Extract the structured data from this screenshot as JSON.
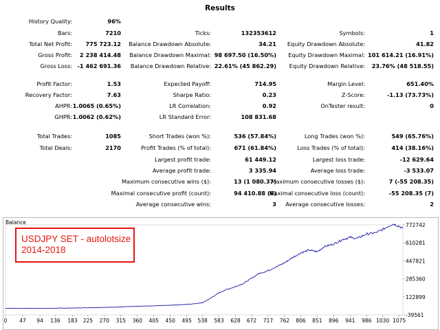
{
  "report": {
    "title": "Results",
    "rows": [
      {
        "id": "r1",
        "cells": [
          {
            "label": "History Quality:",
            "value": "96%"
          },
          null,
          {
            "label": "Ticks:",
            "value": "132353612"
          },
          {
            "label": "Symbols:",
            "value": "1"
          }
        ]
      },
      {
        "id": "r2",
        "cells": [
          {
            "label": "Bars:",
            "value": "7210"
          },
          {
            "label": "Balance Drawdown Absolute:",
            "value": "34.21"
          },
          {
            "label": "Equity Drawdown Absolute:",
            "value": "41.82"
          }
        ]
      },
      {
        "id": "r3",
        "cells": [
          {
            "label": "Total Net Profit:",
            "value": "775 723.12"
          },
          {
            "label": "Balance Drawdown Absolute:",
            "value": "34.21"
          },
          {
            "label": "Equity Drawdown Absolute:",
            "value": "41.82"
          }
        ]
      }
    ],
    "sections": [
      [
        {
          "label": "History Quality:",
          "value": "96%",
          "col": 0
        },
        {
          "label": "Bars:",
          "value": "7210",
          "col": 0
        },
        {
          "label": "Ticks:",
          "value": "132353612",
          "col": 1
        },
        {
          "label": "Symbols:",
          "value": "1",
          "col": 2
        }
      ]
    ],
    "grid": [
      [
        {
          "label": "History Quality:",
          "value": "96%"
        },
        null,
        null
      ],
      [
        {
          "label": "Bars:",
          "value": "7210"
        },
        {
          "label": "Ticks:",
          "value": "132353612"
        },
        {
          "label": "Symbols:",
          "value": "1"
        }
      ],
      [
        {
          "label": "Total Net Profit:",
          "value": "775 723.12"
        },
        {
          "label": "Balance Drawdown Absolute:",
          "value": "34.21"
        },
        {
          "label": "Equity Drawdown Absolute:",
          "value": "41.82"
        }
      ],
      [
        {
          "label": "Gross Profit:",
          "value": "2 238 414.48"
        },
        {
          "label": "Balance Drawdown Maximal:",
          "value": "98 697.50 (16.50%)"
        },
        {
          "label": "Equity Drawdown Maximal:",
          "value": "101 614.21 (16.91%)"
        }
      ],
      [
        {
          "label": "Gross Loss:",
          "value": "-1 462 691.36"
        },
        {
          "label": "Balance Drawdown Relative:",
          "value": "22.61% (45 862.29)"
        },
        {
          "label": "Equity Drawdown Relative:",
          "value": "23.76% (48 518.55)"
        }
      ],
      null,
      [
        {
          "label": "Profit Factor:",
          "value": "1.53"
        },
        {
          "label": "Expected Payoff:",
          "value": "714.95"
        },
        {
          "label": "Margin Level:",
          "value": "651.40%"
        }
      ],
      [
        {
          "label": "Recovery Factor:",
          "value": "7.63"
        },
        {
          "label": "Sharpe Ratio:",
          "value": "0.23"
        },
        {
          "label": "Z-Score:",
          "value": "-1.13 (73.73%)"
        }
      ],
      [
        {
          "label": "AHPR:",
          "value": "1.0065 (0.65%)"
        },
        {
          "label": "LR Correlation:",
          "value": "0.92"
        },
        {
          "label": "OnTester result:",
          "value": "0"
        }
      ],
      [
        {
          "label": "GHPR:",
          "value": "1.0062 (0.62%)"
        },
        {
          "label": "LR Standard Error:",
          "value": "108 831.68"
        },
        null
      ],
      null,
      [
        {
          "label": "Total Trades:",
          "value": "1085"
        },
        {
          "label": "Short Trades (won %):",
          "value": "536 (57.84%)"
        },
        {
          "label": "Long Trades (won %):",
          "value": "549 (65.76%)"
        }
      ],
      [
        {
          "label": "Total Deals:",
          "value": "2170"
        },
        {
          "label": "Profit Trades (% of total):",
          "value": "671 (61.84%)"
        },
        {
          "label": "Loss Trades (% of total):",
          "value": "414 (38.16%)"
        }
      ],
      [
        null,
        {
          "label": "Largest profit trade:",
          "value": "61 449.12"
        },
        {
          "label": "Largest loss trade:",
          "value": "-12 629.64"
        }
      ],
      [
        null,
        {
          "label": "Average profit trade:",
          "value": "3 335.94"
        },
        {
          "label": "Average loss trade:",
          "value": "-3 533.07"
        }
      ],
      [
        null,
        {
          "label": "Maximum consecutive wins ($):",
          "value": "13 (1 080.37)"
        },
        {
          "label": "Maximum consecutive losses ($):",
          "value": "7 (-55 208.35)"
        }
      ],
      [
        null,
        {
          "label": "Maximal consecutive profit (count):",
          "value": "94 410.88 (6)"
        },
        {
          "label": "Maximal consecutive loss (count):",
          "value": "-55 208.35 (7)"
        }
      ],
      [
        null,
        {
          "label": "Average consecutive wins:",
          "value": "3"
        },
        {
          "label": "Average consecutive losses:",
          "value": "2"
        }
      ]
    ]
  },
  "chart_panel": {
    "title": "Balance",
    "overlay_line1": "USDJPY SET - autolotsize",
    "overlay_line2": "2014-2018",
    "line_color": "#1a1aa8",
    "overlay_color": "#e8140f"
  },
  "chart_data": {
    "type": "line",
    "title": "Balance",
    "xlabel": "",
    "ylabel": "",
    "x_ticks": [
      "0",
      "47",
      "94",
      "136",
      "183",
      "225",
      "270",
      "315",
      "360",
      "405",
      "450",
      "495",
      "538",
      "583",
      "628",
      "672",
      "717",
      "762",
      "806",
      "851",
      "896",
      "941",
      "986",
      "1030",
      "1075"
    ],
    "y_ticks": [
      "772742",
      "610281",
      "447821",
      "285360",
      "122899",
      "-39561"
    ],
    "ylim": [
      -39561,
      772742
    ],
    "xlim": [
      0,
      1085
    ],
    "series": [
      {
        "x": [
          0,
          47,
          94,
          136,
          183,
          225,
          270,
          315,
          360,
          405,
          450,
          495,
          520,
          538,
          560,
          583,
          600,
          628,
          650,
          672,
          690,
          717,
          740,
          762,
          785,
          806,
          830,
          851,
          870,
          896,
          920,
          941,
          960,
          986,
          1010,
          1030,
          1050,
          1060,
          1075,
          1085
        ],
        "values": [
          20000,
          19000,
          19500,
          20500,
          22000,
          25000,
          28000,
          32000,
          38000,
          42000,
          48000,
          55000,
          62000,
          70000,
          110000,
          160000,
          185000,
          215000,
          245000,
          290000,
          330000,
          360000,
          395000,
          430000,
          480000,
          520000,
          545000,
          530000,
          575000,
          600000,
          640000,
          660000,
          650000,
          690000,
          700000,
          730000,
          770000,
          780000,
          760000,
          740000
        ]
      }
    ]
  }
}
